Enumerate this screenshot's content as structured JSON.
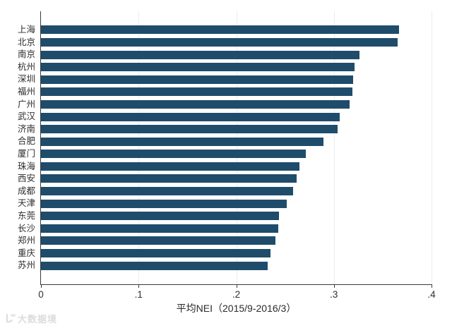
{
  "chart_data": {
    "type": "bar",
    "orientation": "horizontal",
    "title": "",
    "xlabel": "平均NEI（2015/9-2016/3）",
    "ylabel": "",
    "xlim": [
      0,
      0.4
    ],
    "x_ticks": [
      "0",
      ".1",
      ".2",
      ".3",
      ".4"
    ],
    "grid": "vertical gridlines at each x tick, light gray",
    "legend": "none",
    "bar_color": "#1f4c6b",
    "categories": [
      "上海",
      "北京",
      "南京",
      "杭州",
      "深圳",
      "福州",
      "广州",
      "武汉",
      "济南",
      "合肥",
      "厦门",
      "珠海",
      "西安",
      "成都",
      "天津",
      "东莞",
      "长沙",
      "郑州",
      "重庆",
      "苏州"
    ],
    "values": [
      0.367,
      0.365,
      0.326,
      0.321,
      0.32,
      0.319,
      0.316,
      0.306,
      0.304,
      0.289,
      0.271,
      0.265,
      0.262,
      0.258,
      0.252,
      0.244,
      0.243,
      0.24,
      0.235,
      0.232
    ]
  },
  "watermark": {
    "text": "大数据境"
  },
  "colors": {
    "bar": "#1f4c6b",
    "axis_line": "#3a3a3a",
    "gridline": "#ececec",
    "tick_text": "#2f2f2f",
    "category_text": "#2d2d2d",
    "background": "#ffffff",
    "watermark": "#dcdcdc"
  }
}
